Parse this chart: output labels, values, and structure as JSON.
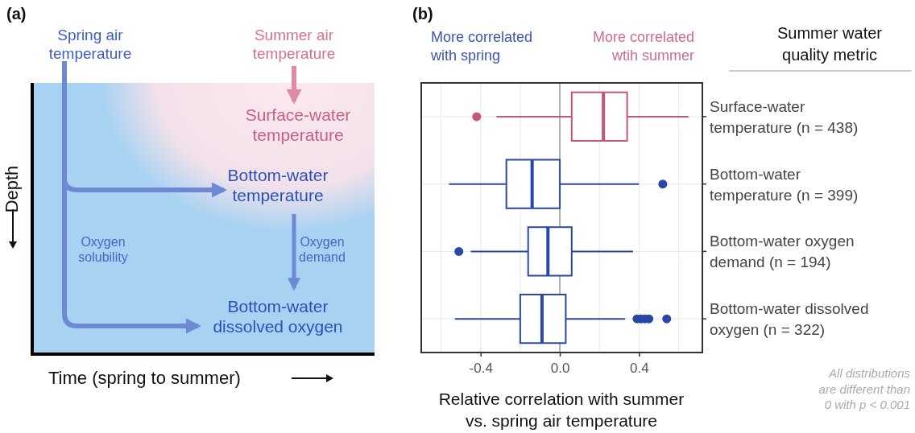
{
  "chart_data": [
    {
      "type": "other",
      "title": "(a)",
      "xlabel": "Time (spring to summer)",
      "ylabel": "Depth",
      "annotations": [
        "Spring air\ntemperature",
        "Summer air\ntemperature",
        "Surface-water\ntemperature",
        "Bottom-water\ntemperature",
        "Bottom-water\ndissolved oxygen",
        "Oxygen\nsolubility",
        "Oxygen\ndemand"
      ]
    },
    {
      "type": "box",
      "orientation": "horizontal",
      "title": "(b)",
      "categories": [
        "Surface-water\ntemperature (n = 438)",
        "Bottom-water\ntemperature (n = 399)",
        "Bottom-water oxygen\ndemand (n = 194)",
        "Bottom-water dissolved\noxygen (n = 322)"
      ],
      "colors": [
        "#c9547a",
        "#2a47a6",
        "#2a47a6",
        "#2a47a6"
      ],
      "boxes": [
        {
          "low": -0.32,
          "q1": 0.06,
          "median": 0.22,
          "q3": 0.34,
          "high": 0.65,
          "outliers": [
            -0.42
          ]
        },
        {
          "low": -0.56,
          "q1": -0.27,
          "median": -0.14,
          "q3": 0.0,
          "high": 0.4,
          "outliers": [
            0.52
          ]
        },
        {
          "low": -0.45,
          "q1": -0.16,
          "median": -0.06,
          "q3": 0.06,
          "high": 0.37,
          "outliers": [
            -0.51
          ]
        },
        {
          "low": -0.53,
          "q1": -0.2,
          "median": -0.09,
          "q3": 0.03,
          "high": 0.33,
          "outliers": [
            0.39,
            0.41,
            0.43,
            0.45,
            0.54
          ]
        }
      ],
      "xlim": [
        -0.7,
        0.72
      ],
      "xticks": [
        {
          "value": -0.6,
          "label": null
        },
        {
          "value": -0.4,
          "label": "-0.4"
        },
        {
          "value": -0.2,
          "label": null
        },
        {
          "value": 0,
          "label": "0.0"
        },
        {
          "value": 0.2,
          "label": null
        },
        {
          "value": 0.4,
          "label": "0.4"
        },
        {
          "value": 0.6,
          "label": null
        }
      ],
      "grid": true,
      "ref_lines": [
        {
          "axis": "x",
          "value": 0,
          "color": "#9a9a9a"
        }
      ],
      "xlabel": "Relative correlation with summer\nvs. spring air temperature",
      "ylabel": "Summer water quality metric",
      "annotations": [
        "More correlated\nwith spring",
        "More correlated\nwtih summer",
        "All distributions\nare different than\n0 with p < 0.001"
      ]
    }
  ]
}
